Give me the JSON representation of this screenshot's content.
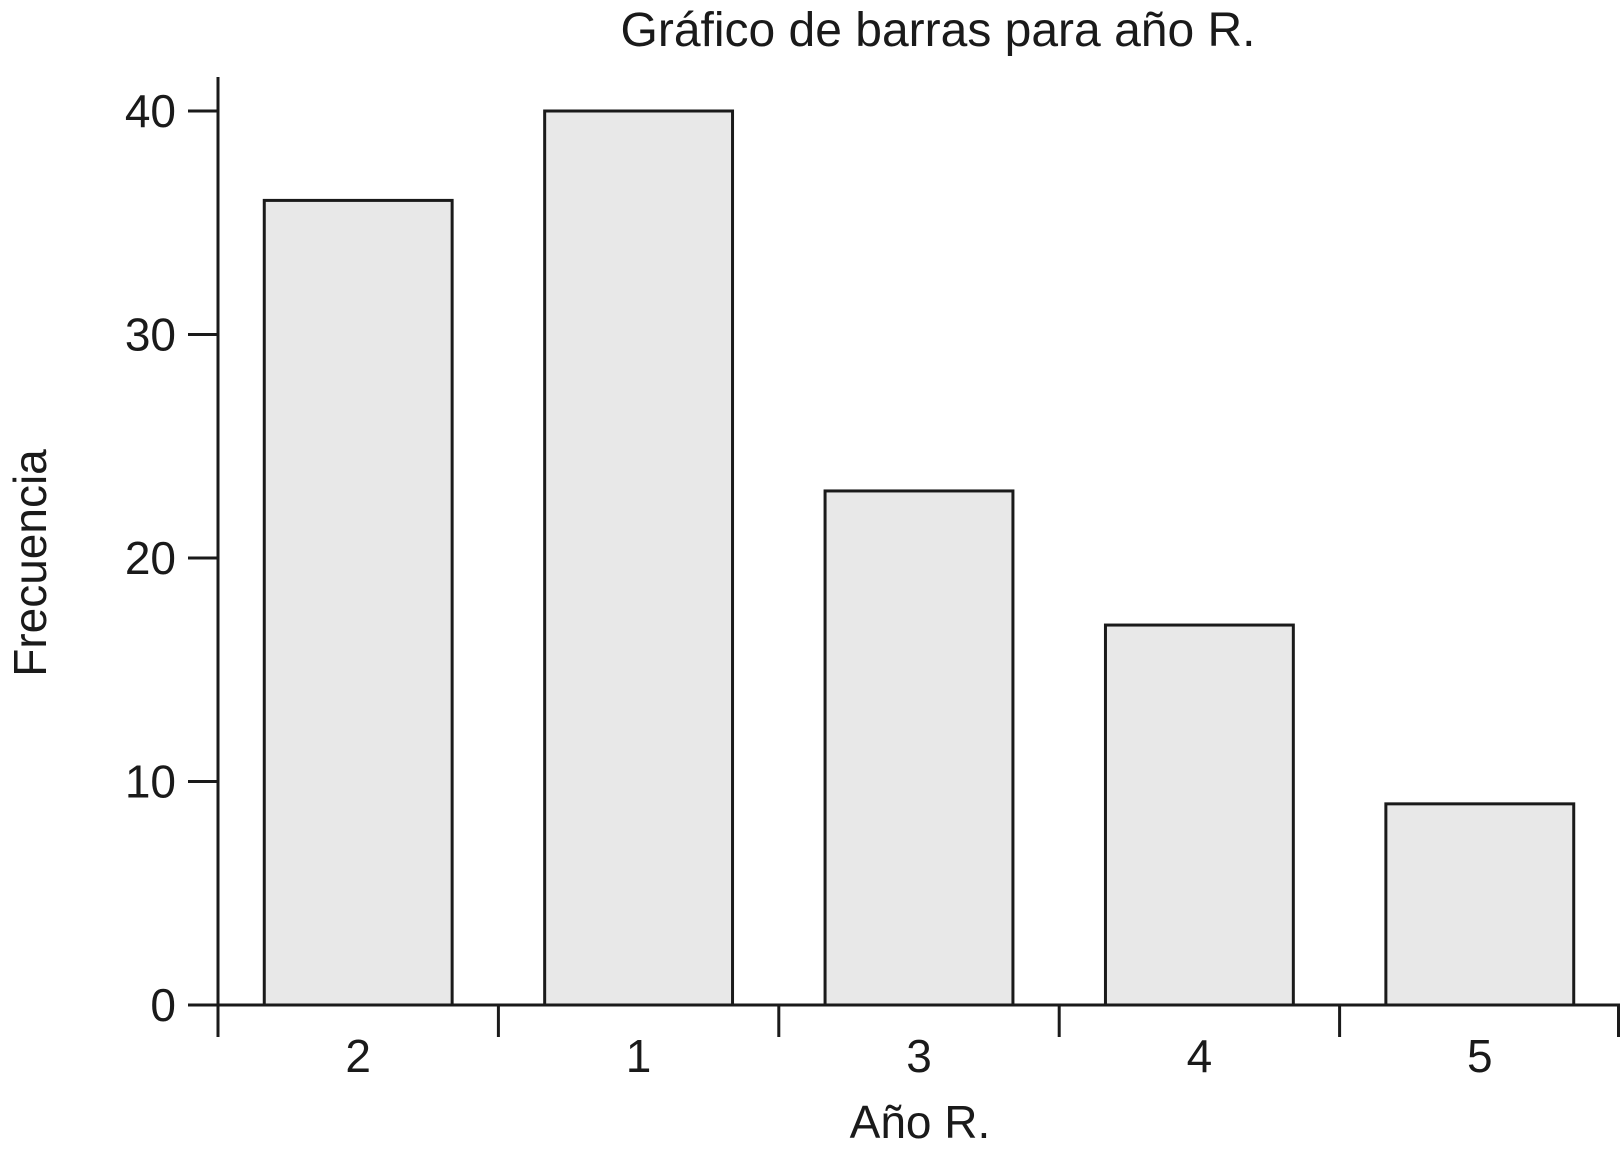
{
  "chart_data": {
    "type": "bar",
    "title": "Gráfico de barras para año R.",
    "xlabel": "Año R.",
    "ylabel": "Frecuencia",
    "categories": [
      "2",
      "1",
      "3",
      "4",
      "5"
    ],
    "values": [
      36,
      40,
      23,
      17,
      9
    ],
    "ylim": [
      0,
      40
    ],
    "yticks": [
      "0",
      "10",
      "20",
      "30",
      "40"
    ],
    "ytick_values": [
      0,
      10,
      20,
      30,
      40
    ],
    "grid": false,
    "legend": "none",
    "bar_color": "#e8e8e8",
    "edge_color": "#1a1a1a"
  }
}
